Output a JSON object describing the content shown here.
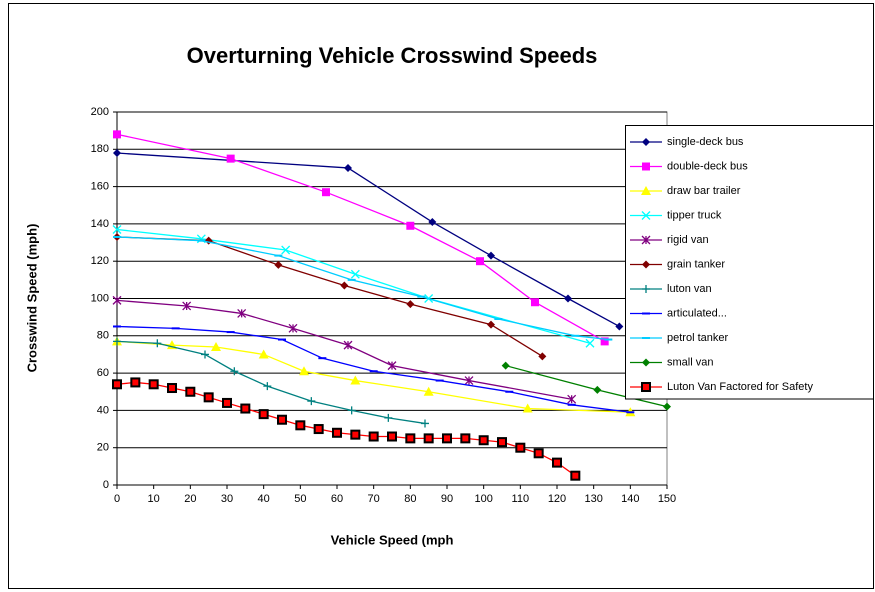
{
  "chart_data": {
    "type": "line",
    "title": "Overturning Vehicle Crosswind Speeds",
    "x_label": "Vehicle Speed (mph",
    "y_label": "Crosswind Speed (mph)",
    "xlim": [
      0,
      150
    ],
    "ylim": [
      0,
      200
    ],
    "xticks": [
      0,
      10,
      20,
      30,
      40,
      50,
      60,
      70,
      80,
      90,
      100,
      110,
      120,
      130,
      140,
      150
    ],
    "yticks": [
      0,
      20,
      40,
      60,
      80,
      100,
      120,
      140,
      160,
      180,
      200
    ],
    "grid": true,
    "legend": "right",
    "series": [
      {
        "name": "single-deck bus",
        "color": "#000080",
        "marker": "diamond",
        "x": [
          0,
          63,
          86,
          102,
          123,
          137
        ],
        "values": [
          178,
          170,
          141,
          123,
          100,
          85
        ]
      },
      {
        "name": "double-deck bus",
        "color": "#ff00ff",
        "marker": "square",
        "x": [
          0,
          31,
          57,
          80,
          99,
          114,
          133
        ],
        "values": [
          188,
          175,
          157,
          139,
          120,
          98,
          77
        ]
      },
      {
        "name": "draw bar trailer",
        "color": "#ffff00",
        "marker": "triangle",
        "x": [
          0,
          15,
          27,
          40,
          51,
          65,
          85,
          112,
          140
        ],
        "values": [
          77,
          75,
          74,
          70,
          61,
          56,
          50,
          41,
          39
        ]
      },
      {
        "name": "tipper truck",
        "color": "#00ffff",
        "marker": "x",
        "x": [
          0,
          23,
          46,
          65,
          85,
          129
        ],
        "values": [
          137,
          132,
          126,
          113,
          100,
          76
        ]
      },
      {
        "name": "rigid van",
        "color": "#800080",
        "marker": "star",
        "x": [
          0,
          19,
          34,
          48,
          63,
          75,
          96,
          124
        ],
        "values": [
          99,
          96,
          92,
          84,
          75,
          64,
          56,
          46
        ]
      },
      {
        "name": "grain tanker",
        "color": "#800000",
        "marker": "diamond",
        "x": [
          0,
          25,
          44,
          62,
          80,
          102,
          116
        ],
        "values": [
          133,
          131,
          118,
          107,
          97,
          86,
          69
        ]
      },
      {
        "name": "luton van",
        "color": "#008080",
        "marker": "plus",
        "x": [
          0,
          11,
          24,
          32,
          41,
          53,
          64,
          74,
          84
        ],
        "values": [
          77,
          76,
          70,
          61,
          53,
          45,
          40,
          36,
          33
        ]
      },
      {
        "name": "articulated...",
        "color": "#0000ff",
        "marker": "dash",
        "x": [
          0,
          16,
          31,
          45,
          56,
          70,
          88,
          107,
          124,
          140
        ],
        "values": [
          85,
          84,
          82,
          78,
          68,
          61,
          56,
          50,
          43,
          39
        ]
      },
      {
        "name": "petrol tanker",
        "color": "#00ccff",
        "marker": "dash",
        "x": [
          0,
          23,
          44,
          64,
          83,
          104,
          125,
          134
        ],
        "values": [
          133,
          131,
          123,
          110,
          101,
          89,
          80,
          78
        ]
      },
      {
        "name": "small van",
        "color": "#008000",
        "marker": "diamond",
        "x": [
          106,
          131,
          150
        ],
        "values": [
          64,
          51,
          42
        ]
      },
      {
        "name": "Luton Van Factored for Safety",
        "color": "#ff0000",
        "marker": "square-dark",
        "x": [
          0,
          5,
          10,
          15,
          20,
          25,
          30,
          35,
          40,
          45,
          50,
          55,
          60,
          65,
          70,
          75,
          80,
          85,
          90,
          95,
          100,
          105,
          110,
          115,
          120,
          125
        ],
        "values": [
          54,
          55,
          54,
          52,
          50,
          47,
          44,
          41,
          38,
          35,
          32,
          30,
          28,
          27,
          26,
          26,
          25,
          25,
          25,
          25,
          24,
          23,
          20,
          17,
          12,
          5
        ]
      }
    ]
  }
}
